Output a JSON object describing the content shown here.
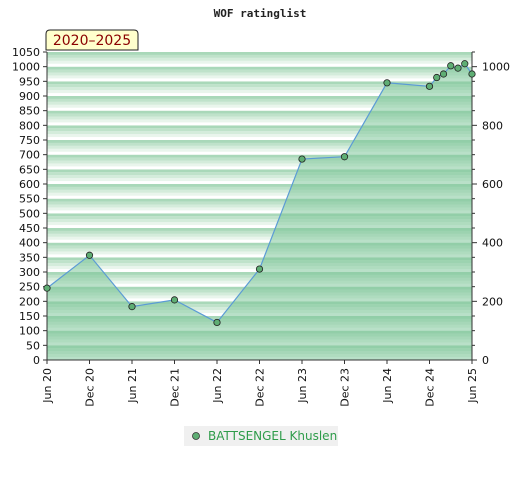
{
  "chart_data": {
    "type": "area",
    "title": "WOF ratinglist",
    "period_label": "2020–2025",
    "x_ticks": [
      "Jun 20",
      "Dec 20",
      "Jun 21",
      "Dec 21",
      "Jun 22",
      "Dec 22",
      "Jun 23",
      "Dec 23",
      "Jun 24",
      "Dec 24",
      "Jun 25"
    ],
    "y_left": {
      "min": 0,
      "max": 1050,
      "step": 50
    },
    "y_right": {
      "min": 0,
      "max": 1050,
      "ticks": [
        0,
        200,
        400,
        600,
        800,
        1000
      ]
    },
    "grid": "horizontal stripes",
    "legend_position": "bottom-center",
    "colors": {
      "fill": "#7fc79a",
      "line": "#5b9bd5",
      "marker": "#5fae74",
      "badge_bg": "#ffffcc"
    },
    "series": [
      {
        "name": "BATTSENGEL Khuslen",
        "points": [
          {
            "x": 0.0,
            "y": 245
          },
          {
            "x": 1.0,
            "y": 357
          },
          {
            "x": 2.0,
            "y": 182
          },
          {
            "x": 3.0,
            "y": 205
          },
          {
            "x": 4.0,
            "y": 128
          },
          {
            "x": 5.0,
            "y": 310
          },
          {
            "x": 6.0,
            "y": 685
          },
          {
            "x": 7.0,
            "y": 693
          },
          {
            "x": 8.0,
            "y": 945
          },
          {
            "x": 9.0,
            "y": 933
          },
          {
            "x": 9.17,
            "y": 963
          },
          {
            "x": 9.33,
            "y": 975
          },
          {
            "x": 9.5,
            "y": 1003
          },
          {
            "x": 9.67,
            "y": 995
          },
          {
            "x": 9.83,
            "y": 1010
          },
          {
            "x": 10.0,
            "y": 975
          }
        ]
      }
    ]
  }
}
